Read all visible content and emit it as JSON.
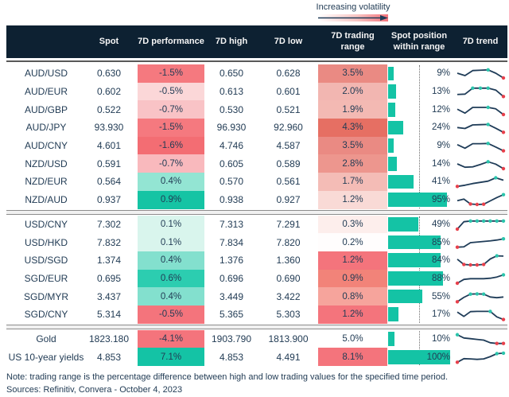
{
  "legend": {
    "label": "Increasing volatility"
  },
  "colors": {
    "header_bg": "#0D2132",
    "header_text": "#F5F5F5",
    "body_text": "#223C55",
    "sparkline": "#1F3C58",
    "bar_teal": "#14C3A5",
    "marker_high": "#2BC5AC",
    "marker_low": "#E8404B",
    "gradient_start": "#FFFFFF",
    "gradient_end": "#F4747C"
  },
  "notes": {
    "note": "Note: trading range is the percentage difference between high and low trading values for the specified time period.",
    "sources": "Sources: Refinitiv, Convera - October 4, 2023"
  },
  "chart_data": {
    "type": "table",
    "headers": [
      "",
      "Spot",
      "7D performance",
      "7D high",
      "7D low",
      "7D trading range",
      "Spot position within range",
      "7D trend"
    ],
    "legend_note": "Trading-range column shading encodes increasing volatility (white to red); trend sparklines mark period highs (teal dots) and lows (red dots); bar shows spot position within 7D range (dotted line = 50%).",
    "sections": [
      {
        "rows": [
          {
            "label": "AUD/USD",
            "spot": "0.630",
            "perf": "-1.5%",
            "perf_bg": "#F5797F",
            "high": "0.650",
            "low": "0.628",
            "range": "3.5%",
            "range_bg": "#EA8A83",
            "position_pct": 9,
            "position_label": "9%",
            "trend": {
              "points": [
                0.5,
                0.3,
                0.72,
                0.75,
                0.78,
                0.5,
                0.1
              ],
              "high_idx": [
                4
              ],
              "low_idx": [
                6
              ]
            }
          },
          {
            "label": "AUD/EUR",
            "spot": "0.602",
            "perf": "-0.5%",
            "perf_bg": "#FBD7D8",
            "high": "0.613",
            "low": "0.601",
            "range": "2.0%",
            "range_bg": "#F2B6B1",
            "position_pct": 13,
            "position_label": "13%",
            "trend": {
              "points": [
                0.25,
                0.28,
                0.78,
                0.78,
                0.78,
                0.62,
                0.08
              ],
              "high_idx": [
                2,
                3,
                4
              ],
              "low_idx": [
                6
              ]
            }
          },
          {
            "label": "AUD/GBP",
            "spot": "0.522",
            "perf": "-0.7%",
            "perf_bg": "#F9C3C6",
            "high": "0.530",
            "low": "0.521",
            "range": "1.9%",
            "range_bg": "#F3B9B3",
            "position_pct": 12,
            "position_label": "12%",
            "trend": {
              "points": [
                0.55,
                0.22,
                0.7,
                0.7,
                0.7,
                0.58,
                0.1
              ],
              "high_idx": [
                4
              ],
              "low_idx": [
                6
              ]
            }
          },
          {
            "label": "AUD/JPY",
            "spot": "93.930",
            "perf": "-1.5%",
            "perf_bg": "#F5797F",
            "high": "96.930",
            "low": "92.960",
            "range": "4.3%",
            "range_bg": "#E66F63",
            "position_pct": 24,
            "position_label": "24%",
            "trend": {
              "points": [
                0.48,
                0.4,
                0.7,
                0.72,
                0.74,
                0.42,
                0.08
              ],
              "high_idx": [
                4
              ],
              "low_idx": [
                6
              ]
            }
          },
          {
            "label": "AUD/CNY",
            "spot": "4.601",
            "perf": "-1.6%",
            "perf_bg": "#F36D73",
            "high": "4.746",
            "low": "4.587",
            "range": "3.5%",
            "range_bg": "#EA8A83",
            "position_pct": 9,
            "position_label": "9%",
            "trend": {
              "points": [
                0.58,
                0.28,
                0.66,
                0.66,
                0.68,
                0.38,
                0.06
              ],
              "high_idx": [
                4
              ],
              "low_idx": [
                6
              ]
            }
          },
          {
            "label": "NZD/USD",
            "spot": "0.591",
            "perf": "-0.7%",
            "perf_bg": "#F9B9BD",
            "high": "0.605",
            "low": "0.589",
            "range": "2.8%",
            "range_bg": "#ED968E",
            "position_pct": 14,
            "position_label": "14%",
            "trend": {
              "points": [
                0.5,
                0.22,
                0.25,
                0.45,
                0.68,
                0.48,
                0.1
              ],
              "high_idx": [
                4
              ],
              "low_idx": [
                6
              ]
            }
          },
          {
            "label": "NZD/EUR",
            "spot": "0.564",
            "perf": "0.4%",
            "perf_bg": "#93E5D3",
            "high": "0.570",
            "low": "0.561",
            "range": "1.7%",
            "range_bg": "#F4BCB6",
            "position_pct": 41,
            "position_label": "41%",
            "trend": {
              "points": [
                0.08,
                0.18,
                0.32,
                0.42,
                0.52,
                0.8,
                0.6
              ],
              "high_idx": [
                5
              ],
              "low_idx": [
                0
              ]
            }
          },
          {
            "label": "NZD/AUD",
            "spot": "0.937",
            "perf": "0.9%",
            "perf_bg": "#15C4A4",
            "high": "0.938",
            "low": "0.927",
            "range": "1.2%",
            "range_bg": "#F9DAD6",
            "position_pct": 95,
            "position_label": "95%",
            "trend": {
              "points": [
                0.42,
                0.55,
                0.14,
                0.1,
                0.12,
                0.4,
                0.68,
                0.92
              ],
              "high_idx": [
                7
              ],
              "low_idx": [
                2,
                3,
                4
              ]
            }
          }
        ]
      },
      {
        "rows": [
          {
            "label": "USD/CNY",
            "spot": "7.302",
            "perf": "0.1%",
            "perf_bg": "#D9F5ED",
            "high": "7.313",
            "low": "7.291",
            "range": "0.3%",
            "range_bg": "#FDEEEC",
            "position_pct": 49,
            "position_label": "49%",
            "trend": {
              "points": [
                0.1,
                0.72,
                0.78,
                0.78,
                0.78,
                0.78,
                0.78,
                0.78
              ],
              "high_idx": [
                2,
                3,
                4,
                5,
                6,
                7
              ],
              "low_idx": [
                0
              ]
            }
          },
          {
            "label": "USD/HKD",
            "spot": "7.832",
            "perf": "0.1%",
            "perf_bg": "#D9F5ED",
            "high": "7.834",
            "low": "7.820",
            "range": "0.2%",
            "range_bg": "#FFFDFD",
            "position_pct": 85,
            "position_label": "85%",
            "trend": {
              "points": [
                0.12,
                0.15,
                0.5,
                0.55,
                0.6,
                0.65,
                0.72,
                0.82
              ],
              "high_idx": [
                7
              ],
              "low_idx": [
                0
              ]
            }
          },
          {
            "label": "USD/SGD",
            "spot": "1.374",
            "perf": "0.4%",
            "perf_bg": "#83E0CE",
            "high": "1.376",
            "low": "1.360",
            "range": "1.2%",
            "range_bg": "#F4747C",
            "position_pct": 84,
            "position_label": "84%",
            "trend": {
              "points": [
                0.58,
                0.14,
                0.1,
                0.1,
                0.14,
                0.6,
                0.86,
                0.84
              ],
              "high_idx": [
                6
              ],
              "low_idx": [
                1,
                2,
                3,
                4
              ]
            }
          },
          {
            "label": "SGD/EUR",
            "spot": "0.695",
            "perf": "0.6%",
            "perf_bg": "#2CCDB0",
            "high": "0.696",
            "low": "0.690",
            "range": "0.9%",
            "range_bg": "#F28379",
            "position_pct": 88,
            "position_label": "88%",
            "trend": {
              "points": [
                0.1,
                0.42,
                0.48,
                0.48,
                0.48,
                0.52,
                0.62,
                0.8
              ],
              "high_idx": [
                7
              ],
              "low_idx": [
                0
              ]
            }
          },
          {
            "label": "SGD/MYR",
            "spot": "3.437",
            "perf": "0.4%",
            "perf_bg": "#83E0CE",
            "high": "3.449",
            "low": "3.422",
            "range": "0.8%",
            "range_bg": "#F6A49C",
            "position_pct": 55,
            "position_label": "55%",
            "trend": {
              "points": [
                0.08,
                0.45,
                0.72,
                0.74,
                0.72,
                0.48,
                0.42,
                0.48
              ],
              "high_idx": [
                2,
                3,
                4
              ],
              "low_idx": [
                0
              ]
            }
          },
          {
            "label": "SGD/CNY",
            "spot": "5.314",
            "perf": "-0.5%",
            "perf_bg": "#F4747C",
            "high": "5.365",
            "low": "5.303",
            "range": "1.2%",
            "range_bg": "#F4747C",
            "position_pct": 17,
            "position_label": "17%",
            "trend": {
              "points": [
                0.68,
                0.32,
                0.72,
                0.74,
                0.74,
                0.74,
                0.28,
                0.06
              ],
              "high_idx": [
                5
              ],
              "low_idx": [
                7
              ]
            }
          }
        ]
      },
      {
        "rows": [
          {
            "label": "Gold",
            "spot": "1823.180",
            "perf": "-4.1%",
            "perf_bg": "#F4747C",
            "high": "1903.790",
            "low": "1813.900",
            "range": "5.0%",
            "range_bg": "#FFFFFF",
            "position_pct": 10,
            "position_label": "10%",
            "trend": {
              "points": [
                0.85,
                0.58,
                0.52,
                0.46,
                0.4,
                0.18,
                0.12,
                0.12
              ],
              "high_idx": [
                0
              ],
              "low_idx": [
                6,
                7
              ]
            }
          },
          {
            "label": "US 10-year yields",
            "spot": "4.853",
            "perf": "7.1%",
            "perf_bg": "#14C3A5",
            "high": "4.853",
            "low": "4.491",
            "range": "8.1%",
            "range_bg": "#F4747C",
            "position_pct": 100,
            "position_label": "100%",
            "trend": {
              "points": [
                0.08,
                0.38,
                0.36,
                0.32,
                0.36,
                0.55,
                0.8,
                0.84
              ],
              "high_idx": [
                6,
                7
              ],
              "low_idx": [
                0
              ]
            }
          }
        ]
      }
    ]
  }
}
